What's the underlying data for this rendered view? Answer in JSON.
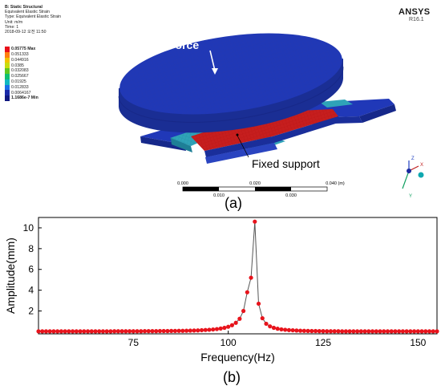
{
  "panel_a": {
    "header_lines": [
      {
        "text": "B: Static Structural",
        "bold": true
      },
      {
        "text": "Equivalent Elastic Strain",
        "bold": false
      },
      {
        "text": "Type: Equivalent Elastic Strain",
        "bold": false
      },
      {
        "text": "Unit: m/m",
        "bold": false
      },
      {
        "text": "Time: 1",
        "bold": false
      },
      {
        "text": "2018-09-12 오전 11:50",
        "bold": false
      }
    ],
    "legend": {
      "entries": [
        {
          "label": "0.05775 Max",
          "color": "#e8101a",
          "bold": true
        },
        {
          "label": "0.051333",
          "color": "#ff7f10"
        },
        {
          "label": "0.044916",
          "color": "#f2c200"
        },
        {
          "label": "0.0385",
          "color": "#c8dc10"
        },
        {
          "label": "0.032083",
          "color": "#5ec820"
        },
        {
          "label": "0.025667",
          "color": "#10c070"
        },
        {
          "label": "0.01925",
          "color": "#10b8c0"
        },
        {
          "label": "0.012833",
          "color": "#1a6ee8"
        },
        {
          "label": "0.0064167",
          "color": "#1a2aa8"
        },
        {
          "label": "1.1686e-7 Min",
          "color": "#101880",
          "bold": true
        }
      ]
    },
    "brand": "ANSYS",
    "version": "R16.1",
    "callout_force": "Force",
    "callout_support": "Fixed support",
    "scale_top_labels": [
      "0.000",
      "0.020",
      "0.040 (m)"
    ],
    "scale_bottom_labels": [
      "0.010",
      "0.030"
    ],
    "triad": {
      "x": "X",
      "y": "Y",
      "z": "Z"
    },
    "label": "(a)"
  },
  "panel_b": {
    "label": "(b)",
    "chart_data": {
      "type": "line",
      "xlabel": "Frequency(Hz)",
      "ylabel": "Amplitude(mm)",
      "xlim": [
        50,
        155
      ],
      "ylim": [
        -0.2,
        11
      ],
      "xticks": [
        75,
        100,
        125,
        150
      ],
      "yticks": [
        2,
        4,
        6,
        8,
        10
      ],
      "series": [
        {
          "line_color": "#555555",
          "marker_color": "#e8141c",
          "x": [
            50,
            51,
            52,
            53,
            54,
            55,
            56,
            57,
            58,
            59,
            60,
            61,
            62,
            63,
            64,
            65,
            66,
            67,
            68,
            69,
            70,
            71,
            72,
            73,
            74,
            75,
            76,
            77,
            78,
            79,
            80,
            81,
            82,
            83,
            84,
            85,
            86,
            87,
            88,
            89,
            90,
            91,
            92,
            93,
            94,
            95,
            96,
            97,
            98,
            99,
            100,
            101,
            102,
            103,
            104,
            105,
            106,
            107,
            108,
            109,
            110,
            111,
            112,
            113,
            114,
            115,
            116,
            117,
            118,
            119,
            120,
            121,
            122,
            123,
            124,
            125,
            126,
            127,
            128,
            129,
            130,
            131,
            132,
            133,
            134,
            135,
            136,
            137,
            138,
            139,
            140,
            141,
            142,
            143,
            144,
            145,
            146,
            147,
            148,
            149,
            150,
            151,
            152,
            153,
            154,
            155
          ],
          "y": [
            0.04,
            0.04,
            0.04,
            0.04,
            0.04,
            0.04,
            0.04,
            0.04,
            0.04,
            0.04,
            0.04,
            0.04,
            0.04,
            0.04,
            0.04,
            0.04,
            0.04,
            0.04,
            0.04,
            0.04,
            0.05,
            0.05,
            0.05,
            0.05,
            0.05,
            0.05,
            0.05,
            0.05,
            0.06,
            0.06,
            0.06,
            0.06,
            0.07,
            0.07,
            0.07,
            0.08,
            0.08,
            0.09,
            0.09,
            0.1,
            0.11,
            0.12,
            0.13,
            0.15,
            0.17,
            0.19,
            0.22,
            0.26,
            0.31,
            0.38,
            0.48,
            0.63,
            0.86,
            1.25,
            2.0,
            3.8,
            5.2,
            10.6,
            2.7,
            1.3,
            0.77,
            0.52,
            0.38,
            0.29,
            0.23,
            0.19,
            0.16,
            0.14,
            0.12,
            0.1,
            0.09,
            0.08,
            0.07,
            0.07,
            0.06,
            0.06,
            0.05,
            0.05,
            0.05,
            0.05,
            0.04,
            0.04,
            0.04,
            0.04,
            0.04,
            0.04,
            0.04,
            0.04,
            0.04,
            0.04,
            0.04,
            0.04,
            0.04,
            0.04,
            0.04,
            0.04,
            0.04,
            0.04,
            0.04,
            0.04,
            0.04,
            0.04,
            0.04,
            0.04,
            0.04,
            0.04
          ]
        }
      ]
    }
  }
}
